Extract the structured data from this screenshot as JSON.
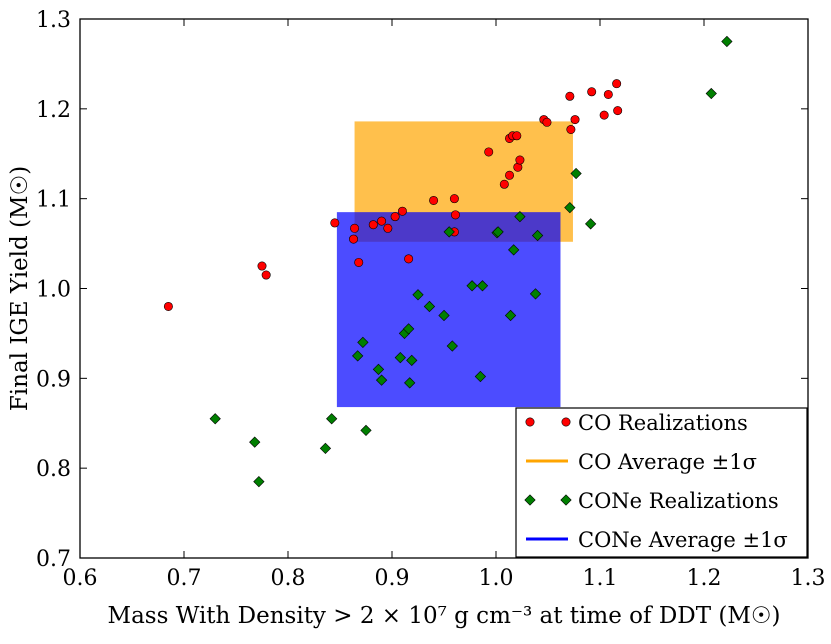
{
  "chart_data": {
    "type": "scatter",
    "title": "",
    "xlabel": "Mass With Density > 2 × 10⁷ g cm⁻³ at time of DDT (M☉)",
    "ylabel": "Final IGE Yield (M☉)",
    "xlim": [
      0.6,
      1.3
    ],
    "ylim": [
      0.7,
      1.3
    ],
    "x_ticks": [
      0.6,
      0.7,
      0.8,
      0.9,
      1.0,
      1.1,
      1.2,
      1.3
    ],
    "x_tick_labels": [
      "0.6",
      "0.7",
      "0.8",
      "0.9",
      "1.0",
      "1.1",
      "1.2",
      "1.3"
    ],
    "y_ticks": [
      0.7,
      0.8,
      0.9,
      1.0,
      1.1,
      1.2,
      1.3
    ],
    "y_tick_labels": [
      "0.7",
      "0.8",
      "0.9",
      "1.0",
      "1.1",
      "1.2",
      "1.3"
    ],
    "grid": false,
    "legend_position": "bottom-right",
    "series": [
      {
        "name": "CO Realizations",
        "marker": "circle",
        "color": "#ff0000",
        "points": [
          [
            0.685,
            0.98
          ],
          [
            0.775,
            1.025
          ],
          [
            0.779,
            1.015
          ],
          [
            0.845,
            1.073
          ],
          [
            0.863,
            1.055
          ],
          [
            0.864,
            1.067
          ],
          [
            0.868,
            1.029
          ],
          [
            0.882,
            1.071
          ],
          [
            0.89,
            1.075
          ],
          [
            0.896,
            1.067
          ],
          [
            0.903,
            1.08
          ],
          [
            0.91,
            1.086
          ],
          [
            0.916,
            1.033
          ],
          [
            0.94,
            1.098
          ],
          [
            0.96,
            1.1
          ],
          [
            0.96,
            1.063
          ],
          [
            0.961,
            1.082
          ],
          [
            0.993,
            1.152
          ],
          [
            1.008,
            1.116
          ],
          [
            1.013,
            1.167
          ],
          [
            1.013,
            1.126
          ],
          [
            1.016,
            1.17
          ],
          [
            1.02,
            1.17
          ],
          [
            1.021,
            1.135
          ],
          [
            1.023,
            1.143
          ],
          [
            1.046,
            1.188
          ],
          [
            1.049,
            1.185
          ],
          [
            1.071,
            1.214
          ],
          [
            1.072,
            1.177
          ],
          [
            1.076,
            1.188
          ],
          [
            1.092,
            1.219
          ],
          [
            1.104,
            1.193
          ],
          [
            1.108,
            1.216
          ],
          [
            1.116,
            1.228
          ],
          [
            1.117,
            1.198
          ]
        ]
      },
      {
        "name": "CONe Realizations",
        "marker": "diamond",
        "color": "#007f00",
        "points": [
          [
            0.73,
            0.855
          ],
          [
            0.768,
            0.829
          ],
          [
            0.772,
            0.785
          ],
          [
            0.836,
            0.822
          ],
          [
            0.842,
            0.855
          ],
          [
            0.867,
            0.925
          ],
          [
            0.872,
            0.94
          ],
          [
            0.875,
            0.842
          ],
          [
            0.887,
            0.91
          ],
          [
            0.89,
            0.898
          ],
          [
            0.908,
            0.923
          ],
          [
            0.912,
            0.95
          ],
          [
            0.916,
            0.955
          ],
          [
            0.917,
            0.895
          ],
          [
            0.919,
            0.92
          ],
          [
            0.925,
            0.993
          ],
          [
            0.936,
            0.98
          ],
          [
            0.95,
            0.97
          ],
          [
            0.955,
            1.063
          ],
          [
            0.958,
            0.936
          ],
          [
            0.977,
            1.003
          ],
          [
            0.985,
            0.902
          ],
          [
            0.987,
            1.003
          ],
          [
            1.001,
            1.062
          ],
          [
            1.002,
            1.063
          ],
          [
            1.014,
            0.97
          ],
          [
            1.017,
            1.043
          ],
          [
            1.023,
            1.08
          ],
          [
            1.038,
            0.994
          ],
          [
            1.04,
            1.059
          ],
          [
            1.071,
            1.09
          ],
          [
            1.077,
            1.128
          ],
          [
            1.091,
            1.072
          ],
          [
            1.207,
            1.217
          ],
          [
            1.222,
            1.275
          ]
        ]
      }
    ],
    "bands": [
      {
        "name": "CO Average ±1σ",
        "color": "#ffa500",
        "x_range": [
          0.864,
          1.074
        ],
        "y_range": [
          1.052,
          1.186
        ]
      },
      {
        "name": "CONe Average ±1σ",
        "color": "#0000ff",
        "x_range": [
          0.847,
          1.062
        ],
        "y_range": [
          0.868,
          1.085
        ]
      }
    ],
    "legend": [
      {
        "label": "CO Realizations",
        "kind": "marker",
        "marker": "circle",
        "color": "#ff0000"
      },
      {
        "label": "CO Average ±1σ",
        "kind": "line",
        "color": "#ffa500"
      },
      {
        "label": "CONe Realizations",
        "kind": "marker",
        "marker": "diamond",
        "color": "#007f00"
      },
      {
        "label": "CONe Average ±1σ",
        "kind": "line",
        "color": "#0000ff"
      }
    ]
  }
}
